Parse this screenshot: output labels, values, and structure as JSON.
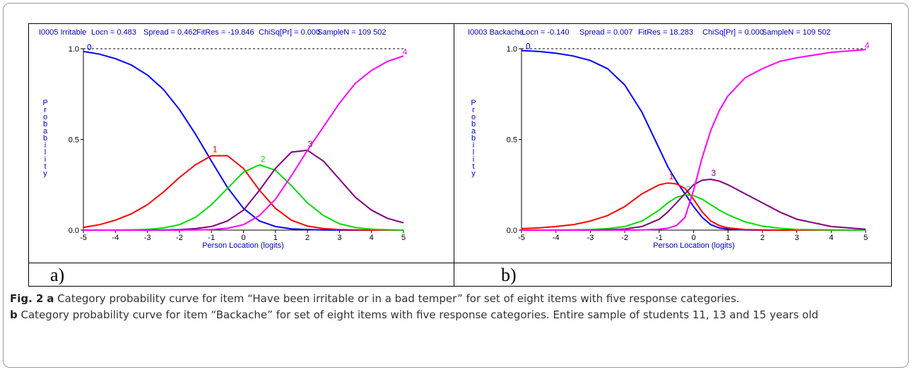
{
  "chart_data": [
    {
      "type": "line",
      "header": {
        "item": "I0005 Irritable",
        "locn": "Locn = 0.483",
        "spread": "Spread = 0.462",
        "fitres": "FitRes = -19.846",
        "chisq": "ChiSq[Pr] = 0.000",
        "samplen": "SampleN = 109 502"
      },
      "xlabel": "Person Location (logits)",
      "ylabel": "Probability",
      "xlim": [
        -5,
        5
      ],
      "ylim": [
        0,
        1
      ],
      "xticks": [
        "-5",
        "-4",
        "-3",
        "-2",
        "-1",
        "0",
        "1",
        "2",
        "3",
        "4",
        "5"
      ],
      "yticks": [
        "0.0",
        "0.5",
        "1.0"
      ],
      "panel_label": "a)",
      "series": [
        {
          "name": "0",
          "color": "#0000ff",
          "x": [
            -5,
            -4.5,
            -4,
            -3.5,
            -3,
            -2.5,
            -2,
            -1.5,
            -1,
            -0.5,
            0,
            0.5,
            1,
            1.5,
            2,
            2.5,
            3,
            3.5,
            4,
            4.5,
            5
          ],
          "values": [
            0.985,
            0.97,
            0.945,
            0.91,
            0.855,
            0.775,
            0.665,
            0.53,
            0.38,
            0.235,
            0.12,
            0.05,
            0.02,
            0.007,
            0.003,
            0.001,
            0,
            0,
            0,
            0,
            0
          ]
        },
        {
          "name": "1",
          "color": "#ff0000",
          "x": [
            -5,
            -4.5,
            -4,
            -3.5,
            -3,
            -2.5,
            -2,
            -1.5,
            -1,
            -0.5,
            0,
            0.5,
            1,
            1.5,
            2,
            2.5,
            3,
            3.5,
            4,
            4.5,
            5
          ],
          "values": [
            0.015,
            0.03,
            0.055,
            0.09,
            0.14,
            0.21,
            0.29,
            0.36,
            0.41,
            0.41,
            0.34,
            0.22,
            0.12,
            0.055,
            0.022,
            0.008,
            0.003,
            0.001,
            0,
            0,
            0
          ]
        },
        {
          "name": "2",
          "color": "#00dd00",
          "x": [
            -5,
            -4.5,
            -4,
            -3.5,
            -3,
            -2.5,
            -2,
            -1.5,
            -1,
            -0.5,
            0,
            0.5,
            1,
            1.5,
            2,
            2.5,
            3,
            3.5,
            4,
            4.5,
            5
          ],
          "values": [
            0,
            0,
            0,
            0.001,
            0.004,
            0.012,
            0.03,
            0.07,
            0.14,
            0.23,
            0.32,
            0.36,
            0.33,
            0.245,
            0.15,
            0.08,
            0.035,
            0.014,
            0.005,
            0.002,
            0
          ]
        },
        {
          "name": "3",
          "color": "#800080",
          "x": [
            -5,
            -4.5,
            -4,
            -3.5,
            -3,
            -2.5,
            -2,
            -1.5,
            -1,
            -0.5,
            0,
            0.5,
            1,
            1.5,
            2,
            2.5,
            3,
            3.5,
            4,
            4.5,
            5
          ],
          "values": [
            0,
            0,
            0,
            0,
            0,
            0.001,
            0.003,
            0.008,
            0.02,
            0.05,
            0.11,
            0.22,
            0.34,
            0.43,
            0.44,
            0.38,
            0.28,
            0.18,
            0.11,
            0.065,
            0.04
          ]
        },
        {
          "name": "4",
          "color": "#ff00ff",
          "x": [
            -5,
            -4.5,
            -4,
            -3.5,
            -3,
            -2.5,
            -2,
            -1.5,
            -1,
            -0.5,
            0,
            0.5,
            1,
            1.5,
            2,
            2.5,
            3,
            3.5,
            4,
            4.5,
            5
          ],
          "values": [
            0,
            0,
            0,
            0,
            0,
            0,
            0,
            0.001,
            0.003,
            0.01,
            0.03,
            0.08,
            0.17,
            0.3,
            0.44,
            0.57,
            0.7,
            0.81,
            0.88,
            0.93,
            0.96
          ]
        }
      ]
    },
    {
      "type": "line",
      "header": {
        "item": "I0003 Backache",
        "locn": "Locn = -0.140",
        "spread": "Spread = 0.007",
        "fitres": "FitRes = 18.283",
        "chisq": "ChiSq[Pr] = 0.000",
        "samplen": "SampleN = 109 502"
      },
      "xlabel": "Person Location (logits)",
      "ylabel": "Probability",
      "xlim": [
        -5,
        5
      ],
      "ylim": [
        0,
        1
      ],
      "xticks": [
        "-5",
        "-4",
        "-3",
        "-2",
        "-1",
        "0",
        "1",
        "2",
        "3",
        "4",
        "5"
      ],
      "yticks": [
        "0.0",
        "0.5",
        "1.0"
      ],
      "panel_label": "b)",
      "series": [
        {
          "name": "0",
          "color": "#0000ff",
          "x": [
            -5,
            -4.5,
            -4,
            -3.5,
            -3,
            -2.5,
            -2,
            -1.5,
            -1,
            -0.75,
            -0.5,
            -0.25,
            0,
            0.25,
            0.5,
            0.75,
            1,
            1.5,
            2,
            2.5,
            3,
            4,
            5
          ],
          "values": [
            0.99,
            0.985,
            0.975,
            0.96,
            0.935,
            0.89,
            0.8,
            0.65,
            0.45,
            0.35,
            0.27,
            0.2,
            0.13,
            0.07,
            0.03,
            0.012,
            0.005,
            0.001,
            0,
            0,
            0,
            0,
            0
          ]
        },
        {
          "name": "1",
          "color": "#ff0000",
          "x": [
            -5,
            -4.5,
            -4,
            -3.5,
            -3,
            -2.5,
            -2,
            -1.5,
            -1,
            -0.75,
            -0.5,
            -0.25,
            0,
            0.25,
            0.5,
            0.75,
            1,
            1.5,
            2,
            2.5,
            3,
            4,
            5
          ],
          "values": [
            0.008,
            0.012,
            0.02,
            0.03,
            0.05,
            0.08,
            0.13,
            0.2,
            0.25,
            0.26,
            0.255,
            0.23,
            0.17,
            0.1,
            0.05,
            0.025,
            0.012,
            0.003,
            0.001,
            0,
            0,
            0,
            0
          ]
        },
        {
          "name": "2",
          "color": "#00dd00",
          "x": [
            -5,
            -4.5,
            -4,
            -3.5,
            -3,
            -2.5,
            -2,
            -1.5,
            -1,
            -0.75,
            -0.5,
            -0.25,
            0,
            0.25,
            0.5,
            0.75,
            1,
            1.5,
            2,
            2.5,
            3,
            4,
            5
          ],
          "values": [
            0,
            0,
            0,
            0.001,
            0.003,
            0.008,
            0.02,
            0.05,
            0.11,
            0.15,
            0.18,
            0.195,
            0.19,
            0.17,
            0.14,
            0.11,
            0.085,
            0.045,
            0.022,
            0.01,
            0.004,
            0.001,
            0
          ]
        },
        {
          "name": "3",
          "color": "#800080",
          "x": [
            -5,
            -4.5,
            -4,
            -3.5,
            -3,
            -2.5,
            -2,
            -1.5,
            -1,
            -0.75,
            -0.5,
            -0.25,
            0,
            0.25,
            0.5,
            0.75,
            1,
            1.5,
            2,
            2.5,
            3,
            4,
            5
          ],
          "values": [
            0,
            0,
            0,
            0,
            0,
            0.002,
            0.006,
            0.02,
            0.06,
            0.1,
            0.15,
            0.2,
            0.25,
            0.275,
            0.28,
            0.27,
            0.25,
            0.2,
            0.15,
            0.1,
            0.06,
            0.02,
            0.005
          ]
        },
        {
          "name": "4",
          "color": "#ff00ff",
          "x": [
            -5,
            -4.5,
            -4,
            -3.5,
            -3,
            -2.5,
            -2,
            -1.5,
            -1,
            -0.75,
            -0.5,
            -0.25,
            0,
            0.25,
            0.5,
            0.75,
            1,
            1.5,
            2,
            2.5,
            3,
            4,
            5
          ],
          "values": [
            0,
            0,
            0,
            0,
            0,
            0,
            0,
            0.001,
            0.005,
            0.01,
            0.025,
            0.07,
            0.22,
            0.4,
            0.55,
            0.66,
            0.74,
            0.84,
            0.89,
            0.93,
            0.95,
            0.98,
            0.995
          ]
        }
      ]
    }
  ],
  "caption": {
    "a_label": "Fig. 2",
    "a_bold": "a",
    "a_text": " Category probability curve for item “Have been irritable or in a bad temper” for set of eight items with five response categories.",
    "b_bold": "b",
    "b_text": " Category probability curve for item “Backache” for set of eight items with five response categories. Entire sample of students 11, 13 and 15 years old"
  }
}
